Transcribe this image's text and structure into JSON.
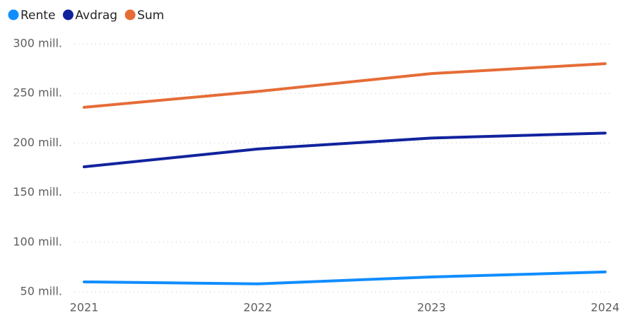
{
  "chart_data": {
    "type": "line",
    "categories": [
      "2021",
      "2022",
      "2023",
      "2024"
    ],
    "series": [
      {
        "name": "Rente",
        "color": "#118DFF",
        "values": [
          60,
          58,
          65,
          70
        ]
      },
      {
        "name": "Avdrag",
        "color": "#12239E",
        "values": [
          176,
          194,
          205,
          210
        ]
      },
      {
        "name": "Sum",
        "color": "#E66C37",
        "values": [
          236,
          252,
          270,
          280
        ]
      }
    ],
    "ylim": [
      50,
      300
    ],
    "yticks": [
      {
        "value": 50,
        "label": "50 mill."
      },
      {
        "value": 100,
        "label": "100 mill."
      },
      {
        "value": 150,
        "label": "150 mill."
      },
      {
        "value": 200,
        "label": "200 mill."
      },
      {
        "value": 250,
        "label": "250 mill."
      },
      {
        "value": 300,
        "label": "300 mill."
      }
    ],
    "grid": true,
    "legend": "top-left"
  }
}
